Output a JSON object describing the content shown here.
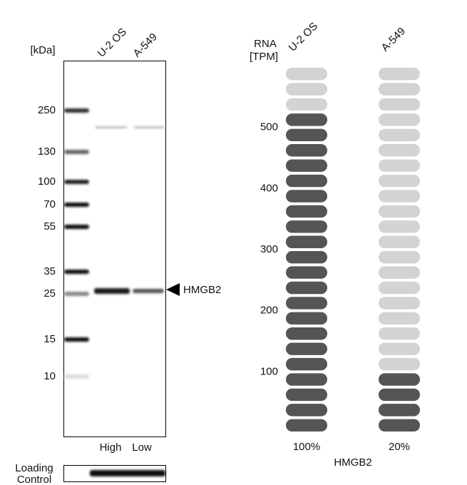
{
  "western_blot": {
    "unit_label": "[kDa]",
    "lanes": [
      "U-2 OS",
      "A-549"
    ],
    "markers": [
      250,
      130,
      100,
      70,
      55,
      35,
      25,
      15,
      10
    ],
    "target": "HMGB2",
    "lane_levels": [
      "High",
      "Low"
    ],
    "loading_control": [
      "Loading",
      "Control"
    ]
  },
  "rna": {
    "ylabel": [
      "RNA",
      "[TPM]"
    ],
    "ylim": [
      0,
      600
    ],
    "yticks": [
      100,
      200,
      300,
      400,
      500
    ],
    "series": [
      {
        "name": "U-2 OS",
        "value": 525,
        "relative_label": "100%"
      },
      {
        "name": "A-549",
        "value": 100,
        "relative_label": "20%"
      }
    ],
    "gene": "HMGB2",
    "colors": {
      "high": "#555555",
      "low": "#d3d3d3"
    }
  }
}
